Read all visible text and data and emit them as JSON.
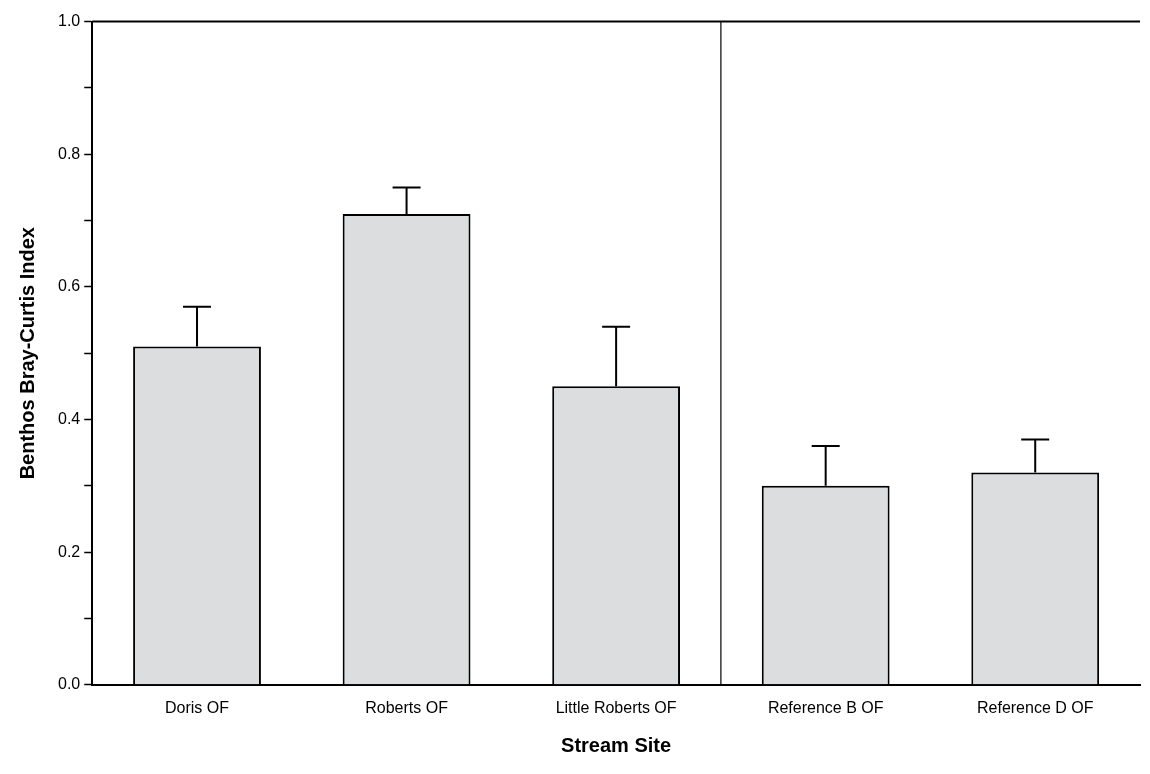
{
  "chart_data": {
    "type": "bar",
    "xlabel": "Stream Site",
    "ylabel": "Benthos Bray-Curtis Index",
    "categories": [
      "Doris OF",
      "Roberts OF",
      "Little Roberts OF",
      "Reference B OF",
      "Reference D OF"
    ],
    "values": [
      0.51,
      0.71,
      0.45,
      0.3,
      0.32
    ],
    "errors": [
      [
        0.51,
        0.57
      ],
      [
        0.71,
        0.75
      ],
      [
        0.45,
        0.54
      ],
      [
        0.3,
        0.36
      ],
      [
        0.32,
        0.37
      ]
    ],
    "color": "#dcdddf",
    "ylim": [
      0,
      1.0
    ],
    "yticks": [
      {
        "value": 0,
        "label": "0.0"
      },
      {
        "value": 0.1,
        "label": null
      },
      {
        "value": 0.2,
        "label": "0.2"
      },
      {
        "value": 0.3,
        "label": null
      },
      {
        "value": 0.4,
        "label": "0.4"
      },
      {
        "value": 0.5,
        "label": null
      },
      {
        "value": 0.6,
        "label": "0.6"
      },
      {
        "value": 0.7,
        "label": null
      },
      {
        "value": 0.8,
        "label": "0.8"
      },
      {
        "value": 0.9,
        "label": null
      },
      {
        "value": 1.0,
        "label": "1.0"
      }
    ],
    "grid": false,
    "legend": false
  }
}
